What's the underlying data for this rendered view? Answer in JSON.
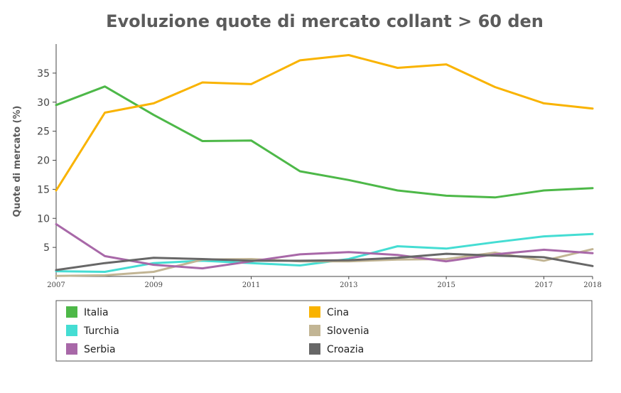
{
  "chart_data": {
    "type": "line",
    "title": "Evoluzione quote di mercato collant > 60 den",
    "ylabel": "Quote di mercato (%)",
    "xlabel": "",
    "xlim": [
      2007,
      2018
    ],
    "ylim": [
      0,
      40
    ],
    "yticks": [
      5,
      10,
      15,
      20,
      25,
      30,
      35
    ],
    "xticks": [
      2007,
      2009,
      2011,
      2013,
      2015,
      2017,
      2018
    ],
    "x": [
      2007,
      2008,
      2009,
      2010,
      2011,
      2012,
      2013,
      2014,
      2015,
      2016,
      2017,
      2018
    ],
    "legend_position": "bottom",
    "series": [
      {
        "name": "Italia",
        "color": "#4db848",
        "values": [
          29.5,
          32.7,
          27.8,
          23.3,
          23.4,
          18.1,
          16.6,
          14.8,
          13.9,
          13.6,
          14.8,
          15.2
        ]
      },
      {
        "name": "Cina",
        "color": "#f9b300",
        "values": [
          14.8,
          28.2,
          29.8,
          33.4,
          33.1,
          37.2,
          38.1,
          35.9,
          36.5,
          32.6,
          29.8,
          28.9
        ]
      },
      {
        "name": "Turchia",
        "color": "#45ddd3",
        "values": [
          0.9,
          0.8,
          2.3,
          2.7,
          2.3,
          1.9,
          3.0,
          5.2,
          4.8,
          5.9,
          6.9,
          7.3
        ]
      },
      {
        "name": "Slovenia",
        "color": "#c2b594",
        "values": [
          0.1,
          0.2,
          0.8,
          2.9,
          3.0,
          2.6,
          2.6,
          2.9,
          3.0,
          4.1,
          2.7,
          4.7
        ]
      },
      {
        "name": "Serbia",
        "color": "#a868a8",
        "values": [
          9.0,
          3.5,
          2.0,
          1.4,
          2.6,
          3.8,
          4.2,
          3.7,
          2.6,
          3.8,
          4.6,
          4.0
        ]
      },
      {
        "name": "Croazia",
        "color": "#676767",
        "values": [
          1.1,
          2.3,
          3.2,
          3.0,
          2.7,
          2.7,
          2.8,
          3.2,
          3.9,
          3.6,
          3.3,
          1.8
        ]
      }
    ]
  }
}
